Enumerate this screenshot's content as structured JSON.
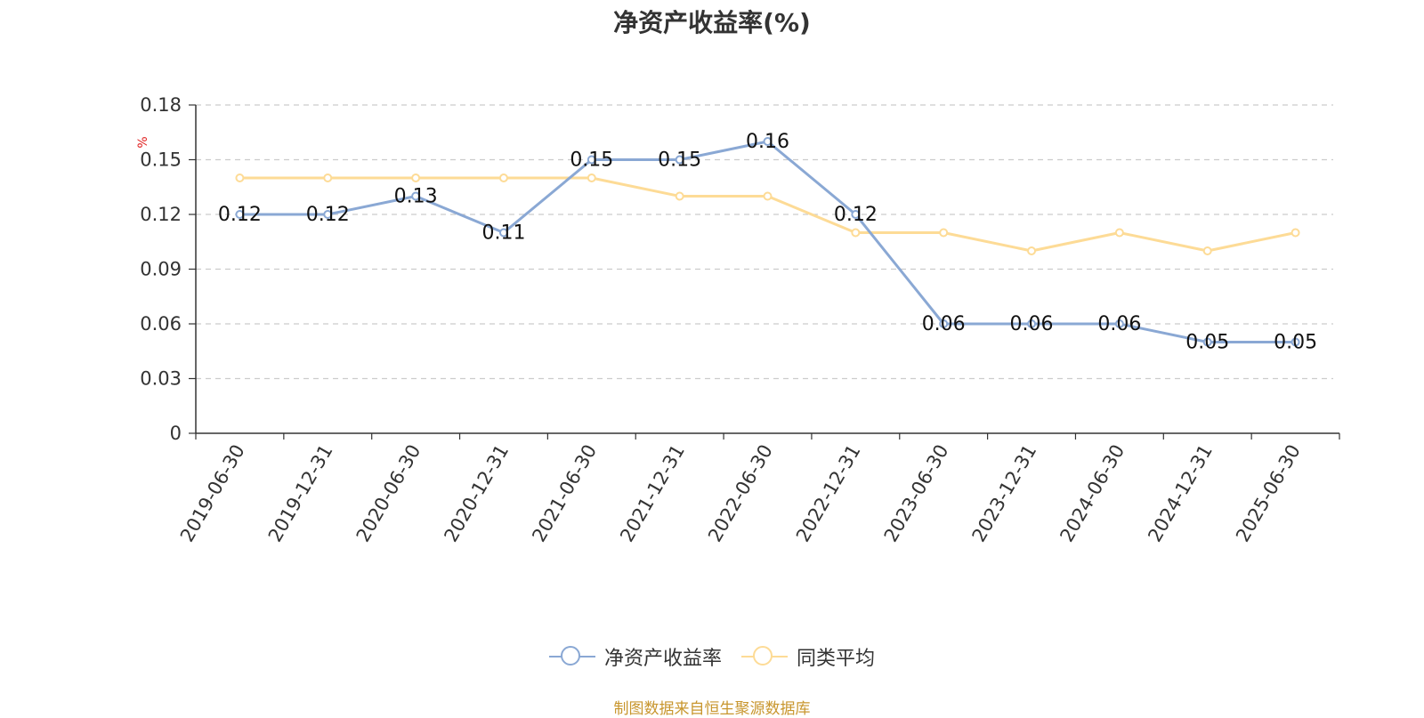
{
  "chart_data": {
    "type": "line",
    "title": "净资产收益率(%)",
    "ylabel": "%",
    "ylim": [
      0,
      0.18
    ],
    "yticks": [
      "0",
      "0.03",
      "0.06",
      "0.09",
      "0.12",
      "0.15",
      "0.18"
    ],
    "grid": true,
    "legend_position": "bottom",
    "categories": [
      "2019-06-30",
      "2019-12-31",
      "2020-06-30",
      "2020-12-31",
      "2021-06-30",
      "2021-12-31",
      "2022-06-30",
      "2022-12-31",
      "2023-06-30",
      "2023-12-31",
      "2024-06-30",
      "2024-12-31",
      "2025-06-30"
    ],
    "series": [
      {
        "name": "净资产收益率",
        "color": "#8aa8d4",
        "show_labels": true,
        "values": [
          0.12,
          0.12,
          0.13,
          0.11,
          0.15,
          0.15,
          0.16,
          0.12,
          0.06,
          0.06,
          0.06,
          0.05,
          0.05
        ]
      },
      {
        "name": "同类平均",
        "color": "#fddb96",
        "show_labels": false,
        "values": [
          0.14,
          0.14,
          0.14,
          0.14,
          0.14,
          0.13,
          0.13,
          0.11,
          0.11,
          0.1,
          0.11,
          0.1,
          0.11
        ]
      }
    ]
  },
  "source_text": "制图数据来自恒生聚源数据库"
}
